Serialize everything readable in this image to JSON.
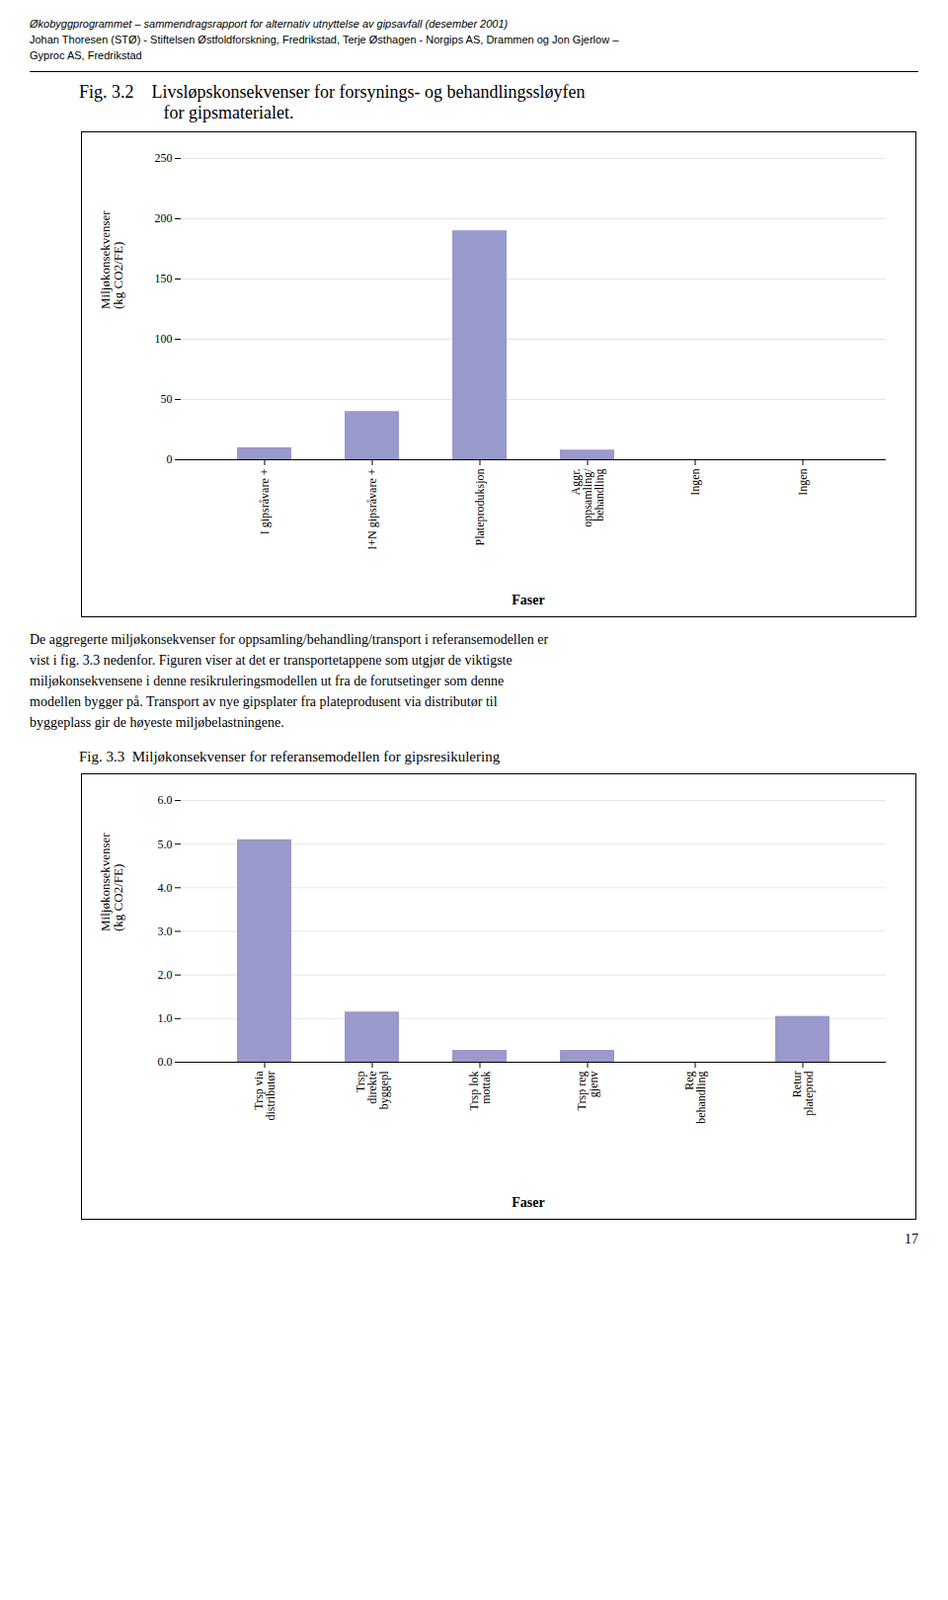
{
  "header": [
    "Økobyggprogrammet – sammendragsrapport  for alternativ utnyttelse av gipsavfall  (desember  2001)",
    "Johan Thoresen (STØ) - Stiftelsen Østfoldforskning, Fredrikstad, Terje Østhagen - Norgips AS, Drammen og Jon Gjerlow –",
    "Gyproc AS, Fredrikstad"
  ],
  "body_text": [
    "De aggregerte miljøkonsekvenser for oppsamling/behandling/transport i referansemodellen er",
    "vist i fig. 3.3 nedenfor. Figuren viser at det er transportetappene som utgjør de viktigste",
    "miljøkonsekvensene i denne resikruleringsmodellen ut fra de forutsetinger som denne",
    "modellen bygger på. Transport av nye gipsplater fra plateprodusent via distributør til",
    "byggeplass gir de høyeste miljøbelastningene."
  ],
  "page_number": "17",
  "chart_data": [
    {
      "type": "bar",
      "title": "Fig. 3.2    Livsløpskonsekvenser for forsynings- og behandlingssløyfen\n                   for gipsmaterialet.",
      "ylabel": "Miljøkonsekvenser\n(kg CO2/FE)",
      "xlabel": "Faser",
      "categories": [
        "I gipsråvare +",
        "I+N gipsråvare +",
        "Plateproduksjon",
        "Aggr.\noppsamling/\nbehandling",
        "Ingen",
        "Ingen"
      ],
      "values": [
        10,
        40,
        190,
        8,
        0,
        0
      ],
      "color": "#9999cc",
      "ylim": [
        0,
        250
      ],
      "yticks": [
        0,
        50,
        100,
        150,
        200,
        250
      ],
      "grid": true
    },
    {
      "type": "bar",
      "title": "Fig. 3.3  Miljøkonsekvenser for referansemodellen for gipsresikulering",
      "ylabel": "Miljøkonsekvenser\n(kg CO2/FE)",
      "xlabel": "Faser",
      "categories": [
        "Trsp via\ndistributør",
        "Trsp\ndirekte\nbyggepl",
        "Trsp lok\nmottak",
        "Trsp reg\ngjenv",
        "Reg\nbehandling",
        "Retur\nplateprod"
      ],
      "values": [
        5.1,
        1.15,
        0.27,
        0.27,
        0.0,
        1.05
      ],
      "color": "#9999cc",
      "ylim": [
        0,
        6
      ],
      "yticks": [
        0,
        1,
        2,
        3,
        4,
        5,
        6
      ],
      "grid": true
    }
  ]
}
